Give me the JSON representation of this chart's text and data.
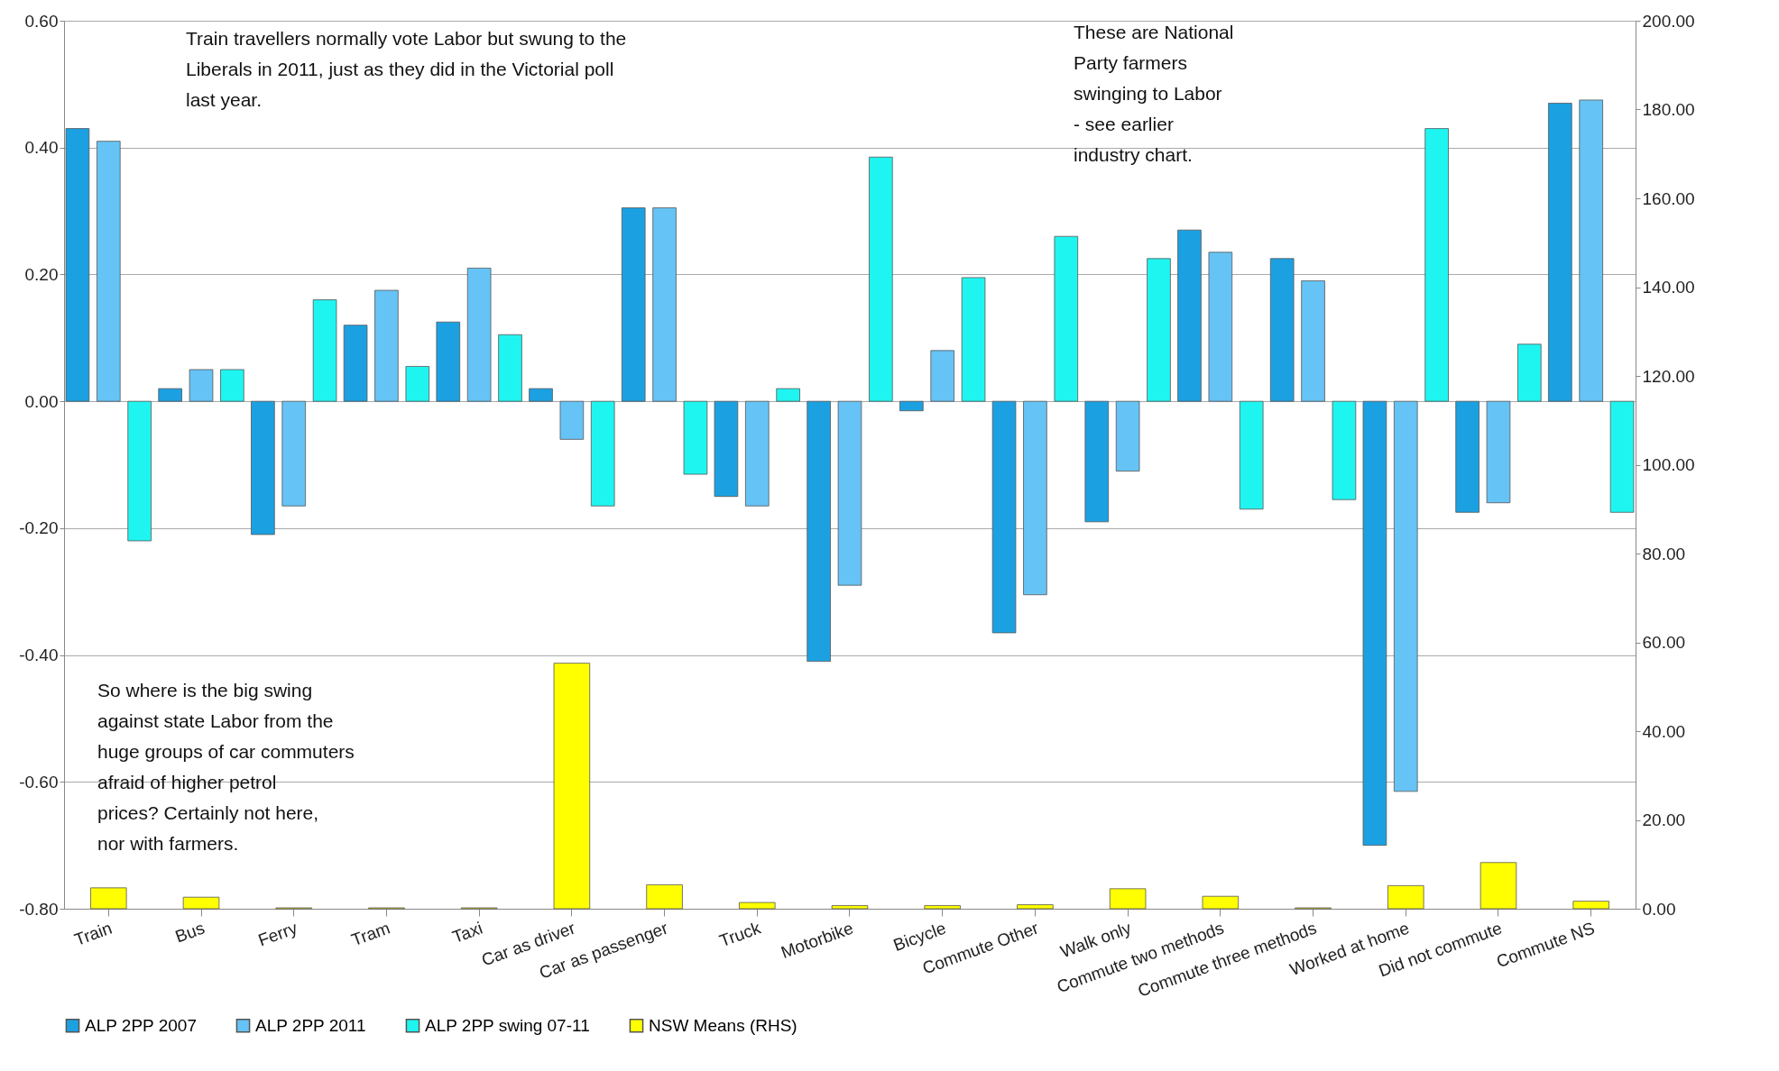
{
  "chart_data": {
    "type": "bar",
    "categories": [
      "Train",
      "Bus",
      "Ferry",
      "Tram",
      "Taxi",
      "Car as driver",
      "Car as passenger",
      "Truck",
      "Motorbike",
      "Bicycle",
      "Commute Other",
      "Walk only",
      "Commute two methods",
      "Commute three methods",
      "Worked at home",
      "Did not commute",
      "Commute NS"
    ],
    "series": [
      {
        "name": "ALP 2PP 2007",
        "color": "#1ba1e2",
        "values": [
          0.43,
          0.02,
          -0.21,
          0.12,
          0.125,
          0.02,
          0.305,
          -0.15,
          -0.41,
          -0.015,
          -0.365,
          -0.19,
          0.27,
          0.225,
          -0.7,
          -0.175,
          0.47
        ]
      },
      {
        "name": "ALP 2PP 2011",
        "color": "#66c3f5",
        "values": [
          0.41,
          0.05,
          -0.165,
          0.175,
          0.21,
          -0.06,
          0.305,
          -0.165,
          -0.29,
          0.08,
          -0.305,
          -0.11,
          0.235,
          0.19,
          -0.615,
          -0.16,
          0.475
        ]
      },
      {
        "name": "ALP 2PP swing 07-11",
        "color": "#1ff5f0",
        "values": [
          -0.22,
          0.05,
          0.16,
          0.055,
          0.105,
          -0.165,
          -0.115,
          0.02,
          0.385,
          0.195,
          0.26,
          0.225,
          -0.17,
          -0.155,
          0.43,
          0.09,
          -0.175
        ]
      },
      {
        "name": "NSW Means (RHS)",
        "color": "#ffff00",
        "axis": "y2",
        "values": [
          4.7,
          2.6,
          0.2,
          0.2,
          0.2,
          55.3,
          5.4,
          1.4,
          0.7,
          0.7,
          0.9,
          4.5,
          2.8,
          0.2,
          5.2,
          10.4,
          1.7
        ]
      }
    ],
    "ylim": [
      -0.8,
      0.6
    ],
    "yticks": [
      {
        "value": -0.8,
        "label": "-0.80"
      },
      {
        "value": -0.6,
        "label": "-0.60"
      },
      {
        "value": -0.4,
        "label": "-0.40"
      },
      {
        "value": -0.2,
        "label": "-0.20"
      },
      {
        "value": 0,
        "label": "0.00"
      },
      {
        "value": 0.2,
        "label": "0.20"
      },
      {
        "value": 0.4,
        "label": "0.40"
      },
      {
        "value": 0.6,
        "label": "0.60"
      }
    ],
    "y2lim": [
      0,
      200
    ],
    "y2ticks": [
      {
        "value": 0,
        "label": "0.00"
      },
      {
        "value": 20,
        "label": "20.00"
      },
      {
        "value": 40,
        "label": "40.00"
      },
      {
        "value": 60,
        "label": "60.00"
      },
      {
        "value": 80,
        "label": "80.00"
      },
      {
        "value": 100,
        "label": "100.00"
      },
      {
        "value": 120,
        "label": "120.00"
      },
      {
        "value": 140,
        "label": "140.00"
      },
      {
        "value": 160,
        "label": "160.00"
      },
      {
        "value": 180,
        "label": "180.00"
      },
      {
        "value": 200,
        "label": "200.00"
      }
    ],
    "grid": "y",
    "legend": "bottom",
    "annotations": [
      "Train travellers normally vote Labor but swung to the Liberals in 2011, just as they did in the Victorial poll last year.",
      "These are National Party farmers swinging to Labor - see earlier industry chart.",
      "So where is the big swing against state Labor from the huge groups of car commuters afraid of higher petrol prices? Certainly not here, nor with farmers."
    ]
  }
}
